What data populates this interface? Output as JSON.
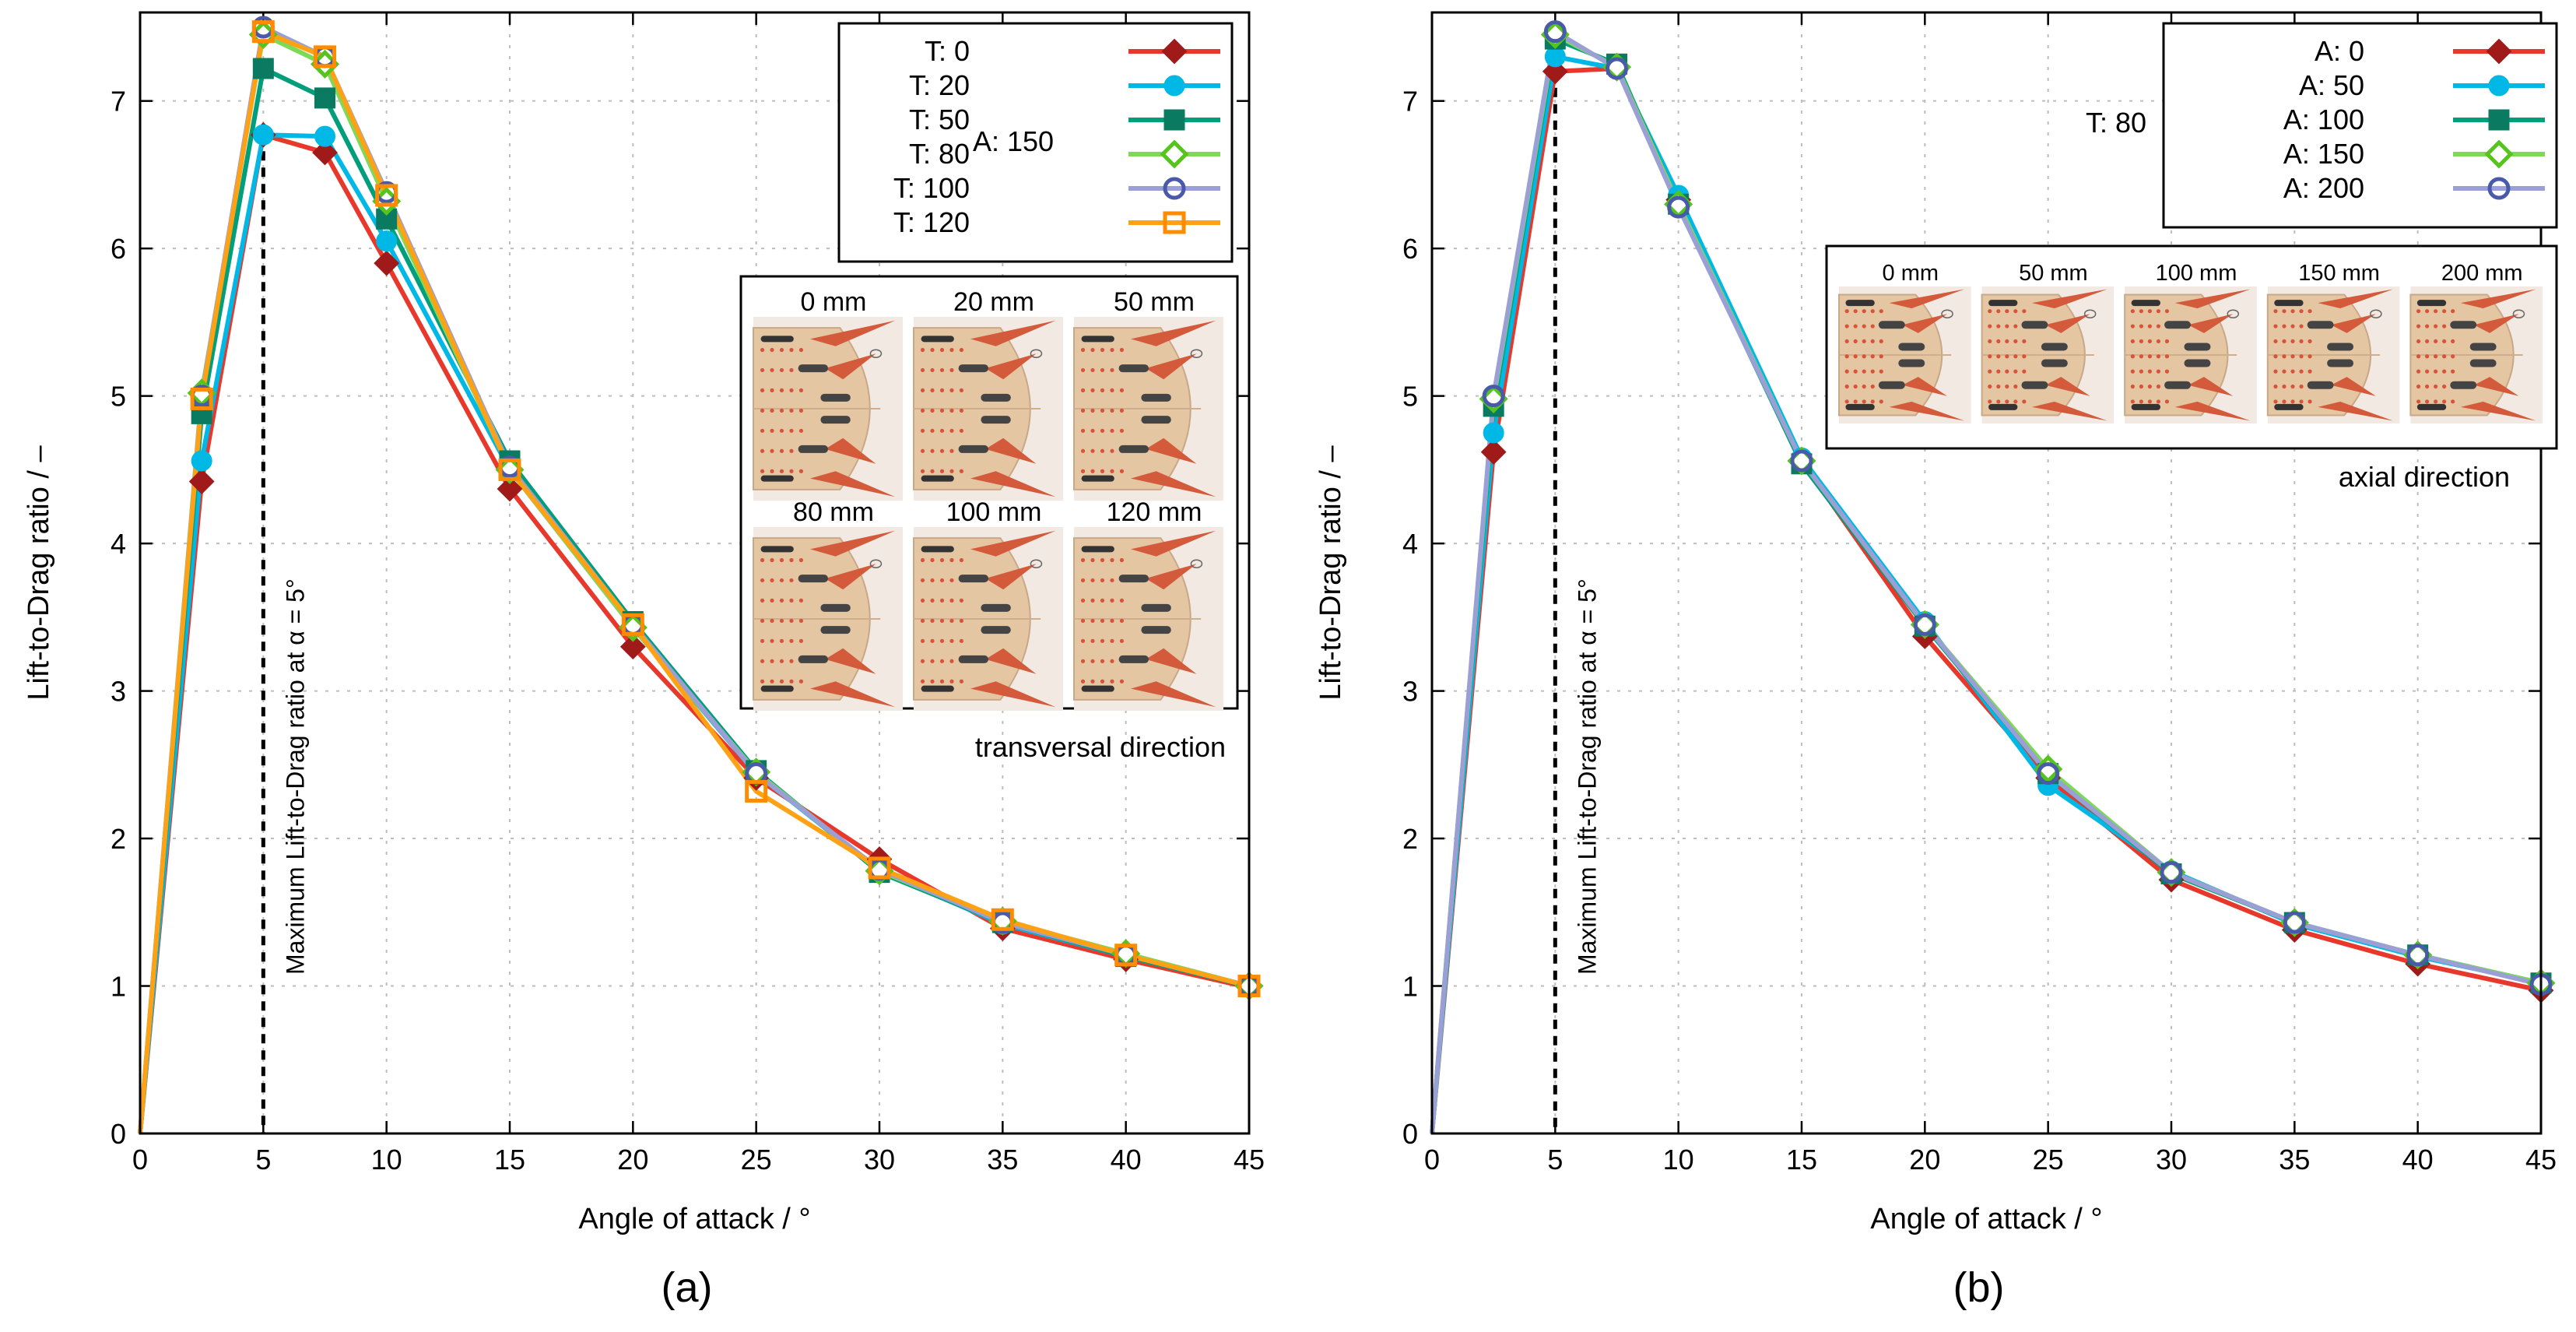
{
  "chart_data": [
    {
      "type": "line",
      "panel_label": "(a)",
      "xlabel": "Angle of attack / °",
      "ylabel": "Lift-to-Drag ratio / –",
      "xlim": [
        0,
        45
      ],
      "ylim": [
        0,
        7.6
      ],
      "xticks": [
        0,
        5,
        10,
        15,
        20,
        25,
        30,
        35,
        40,
        45
      ],
      "yticks": [
        0,
        1,
        2,
        3,
        4,
        5,
        6,
        7
      ],
      "grid": true,
      "x": [
        0,
        2.5,
        5,
        7.5,
        10,
        15,
        20,
        25,
        30,
        35,
        40,
        45
      ],
      "legend_position": "top-right",
      "legend_group_label": "A: 150",
      "annotation": "Maximum Lift-to-Drag ratio at α = 5°",
      "annotation_x": 5,
      "inset": {
        "caption": "transversal direction",
        "images": [
          "0 mm",
          "20 mm",
          "50 mm",
          "80 mm",
          "100 mm",
          "120 mm"
        ]
      },
      "series": [
        {
          "name": "T: 0",
          "color": "#e8382c",
          "marker_color": "#a01a1a",
          "marker": "diamond",
          "values": [
            0,
            4.42,
            6.77,
            6.65,
            5.9,
            4.37,
            3.3,
            2.41,
            1.86,
            1.39,
            1.18,
            0.99
          ]
        },
        {
          "name": "T: 20",
          "color": "#00b8e6",
          "marker_color": "#00b8e6",
          "marker": "circle",
          "values": [
            0,
            4.56,
            6.77,
            6.76,
            6.05,
            4.5,
            3.43,
            2.44,
            1.78,
            1.42,
            1.2,
            1.0
          ]
        },
        {
          "name": "T: 50",
          "color": "#009e7a",
          "marker_color": "#0a7a60",
          "marker": "square",
          "values": [
            0,
            4.88,
            7.22,
            7.02,
            6.2,
            4.56,
            3.47,
            2.46,
            1.77,
            1.43,
            1.2,
            1.0
          ]
        },
        {
          "name": "T: 80",
          "color": "#7ed957",
          "marker_color": "#55c41c",
          "marker": "diamond-open",
          "values": [
            0,
            5.02,
            7.45,
            7.25,
            6.32,
            4.5,
            3.43,
            2.45,
            1.78,
            1.44,
            1.22,
            1.0
          ]
        },
        {
          "name": "T: 100",
          "color": "#9aa0d6",
          "marker_color": "#4a5aaa",
          "marker": "circle-open",
          "values": [
            0,
            5.0,
            7.5,
            7.3,
            6.38,
            4.52,
            3.45,
            2.44,
            1.79,
            1.43,
            1.21,
            1.0
          ]
        },
        {
          "name": "T: 120",
          "color": "#ffa114",
          "marker_color": "#ff8c00",
          "marker": "square-open",
          "values": [
            0,
            4.98,
            7.47,
            7.3,
            6.36,
            4.5,
            3.45,
            2.32,
            1.8,
            1.45,
            1.21,
            1.0
          ]
        }
      ]
    },
    {
      "type": "line",
      "panel_label": "(b)",
      "xlabel": "Angle of attack / °",
      "ylabel": "Lift-to-Drag ratio / –",
      "xlim": [
        0,
        45
      ],
      "ylim": [
        0,
        7.6
      ],
      "xticks": [
        0,
        5,
        10,
        15,
        20,
        25,
        30,
        35,
        40,
        45
      ],
      "yticks": [
        0,
        1,
        2,
        3,
        4,
        5,
        6,
        7
      ],
      "grid": true,
      "x": [
        0,
        2.5,
        5,
        7.5,
        10,
        15,
        20,
        25,
        30,
        35,
        40,
        45
      ],
      "legend_position": "top-right",
      "legend_group_label": "T: 80",
      "annotation": "Maximum Lift-to-Drag ratio at α = 5°",
      "annotation_x": 5,
      "inset": {
        "caption": "axial direction",
        "images": [
          "0 mm",
          "50 mm",
          "100 mm",
          "150 mm",
          "200 mm"
        ]
      },
      "series": [
        {
          "name": "A: 0",
          "color": "#e8382c",
          "marker_color": "#a01a1a",
          "marker": "diamond",
          "values": [
            0,
            4.62,
            7.2,
            7.22,
            6.33,
            4.56,
            3.37,
            2.41,
            1.72,
            1.38,
            1.15,
            0.97
          ]
        },
        {
          "name": "A: 50",
          "color": "#00b8e6",
          "marker_color": "#00b8e6",
          "marker": "circle",
          "values": [
            0,
            4.75,
            7.3,
            7.22,
            6.36,
            4.58,
            3.47,
            2.36,
            1.78,
            1.42,
            1.2,
            1.02
          ]
        },
        {
          "name": "A: 100",
          "color": "#009e7a",
          "marker_color": "#0a7a60",
          "marker": "square",
          "values": [
            0,
            4.93,
            7.42,
            7.25,
            6.3,
            4.54,
            3.44,
            2.44,
            1.76,
            1.43,
            1.21,
            1.02
          ]
        },
        {
          "name": "A: 150",
          "color": "#7ed957",
          "marker_color": "#55c41c",
          "marker": "diamond-open",
          "values": [
            0,
            4.98,
            7.45,
            7.23,
            6.3,
            4.56,
            3.45,
            2.47,
            1.77,
            1.43,
            1.21,
            1.02
          ]
        },
        {
          "name": "A: 200",
          "color": "#9aa0d6",
          "marker_color": "#4a5aaa",
          "marker": "circle-open",
          "values": [
            0,
            5.0,
            7.47,
            7.22,
            6.28,
            4.56,
            3.45,
            2.44,
            1.77,
            1.43,
            1.21,
            1.01
          ]
        }
      ]
    }
  ]
}
